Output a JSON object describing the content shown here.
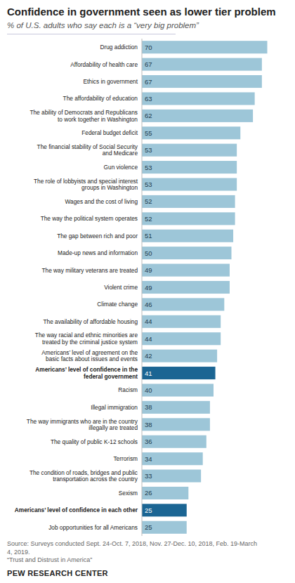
{
  "chart_data": {
    "type": "bar",
    "orientation": "horizontal",
    "title": "Confidence in government seen as lower tier problem",
    "subtitle": "% of U.S. adults who say each is a “very big problem”",
    "categories": [
      "Drug addiction",
      "Affordability of health care",
      "Ethics in government",
      "The affordability of education",
      "The ability of Democrats and Republicans\nto work together in Washington",
      "Federal budget deficit",
      "The financial stability of Social Security\nand Medicare",
      "Gun violence",
      "The role of lobbyists and special interest\ngroups in Washington",
      "Wages and the cost of living",
      "The way the political system operates",
      "The gap between rich and poor",
      "Made-up news and information",
      "The way military veterans are treated",
      "Violent crime",
      "Climate change",
      "The availability of affordable housing",
      "The way racial and ethnic minorities are\ntreated by the criminal justice system",
      "Americans’ level of agreement on the\nbasic facts about issues and events",
      "Americans’ level of confidence in the\nfederal government",
      "Racism",
      "Illegal immigration",
      "The way immigrants who are in the country\nillegally are treated",
      "The quality of public K-12 schools",
      "Terrorism",
      "The condition of roads, bridges and public\ntransportation across the country",
      "Sexism",
      "Americans’ level of confidence in each other",
      "Job opportunities for all Americans"
    ],
    "values": [
      70,
      67,
      67,
      63,
      62,
      55,
      53,
      53,
      53,
      52,
      52,
      51,
      50,
      49,
      49,
      46,
      44,
      44,
      42,
      41,
      40,
      38,
      38,
      36,
      34,
      33,
      26,
      25,
      25
    ],
    "colors": [
      "#9DC6D8",
      "#9DC6D8",
      "#9DC6D8",
      "#9DC6D8",
      "#9DC6D8",
      "#9DC6D8",
      "#9DC6D8",
      "#9DC6D8",
      "#9DC6D8",
      "#9DC6D8",
      "#9DC6D8",
      "#9DC6D8",
      "#9DC6D8",
      "#9DC6D8",
      "#9DC6D8",
      "#9DC6D8",
      "#9DC6D8",
      "#9DC6D8",
      "#9DC6D8",
      "#1B6593",
      "#9DC6D8",
      "#9DC6D8",
      "#9DC6D8",
      "#9DC6D8",
      "#9DC6D8",
      "#9DC6D8",
      "#9DC6D8",
      "#1B6593",
      "#9DC6D8"
    ],
    "xlim": [
      0,
      80
    ],
    "tick_labels": false,
    "grid": false,
    "data_labels": true,
    "source": "Source: Surveys conducted Sept. 24-Oct. 7, 2018, Nov. 27-Dec. 10, 2018, Feb. 19-March\n4, 2019.\n“Trust and Distrust in America”",
    "footer": "PEW RESEARCH CENTER"
  }
}
